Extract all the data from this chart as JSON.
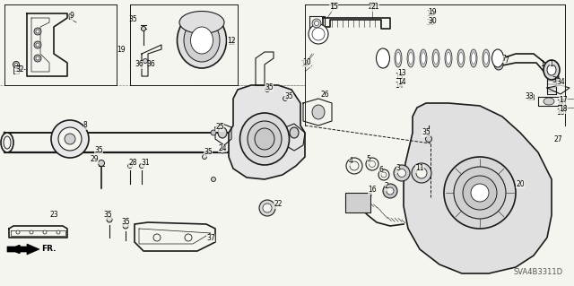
{
  "fig_width": 6.4,
  "fig_height": 3.19,
  "dpi": 100,
  "bg_color": "#f5f5f0",
  "line_color": "#1a1a1a",
  "watermark": "SVA4B3311D",
  "title_color": "#000000"
}
